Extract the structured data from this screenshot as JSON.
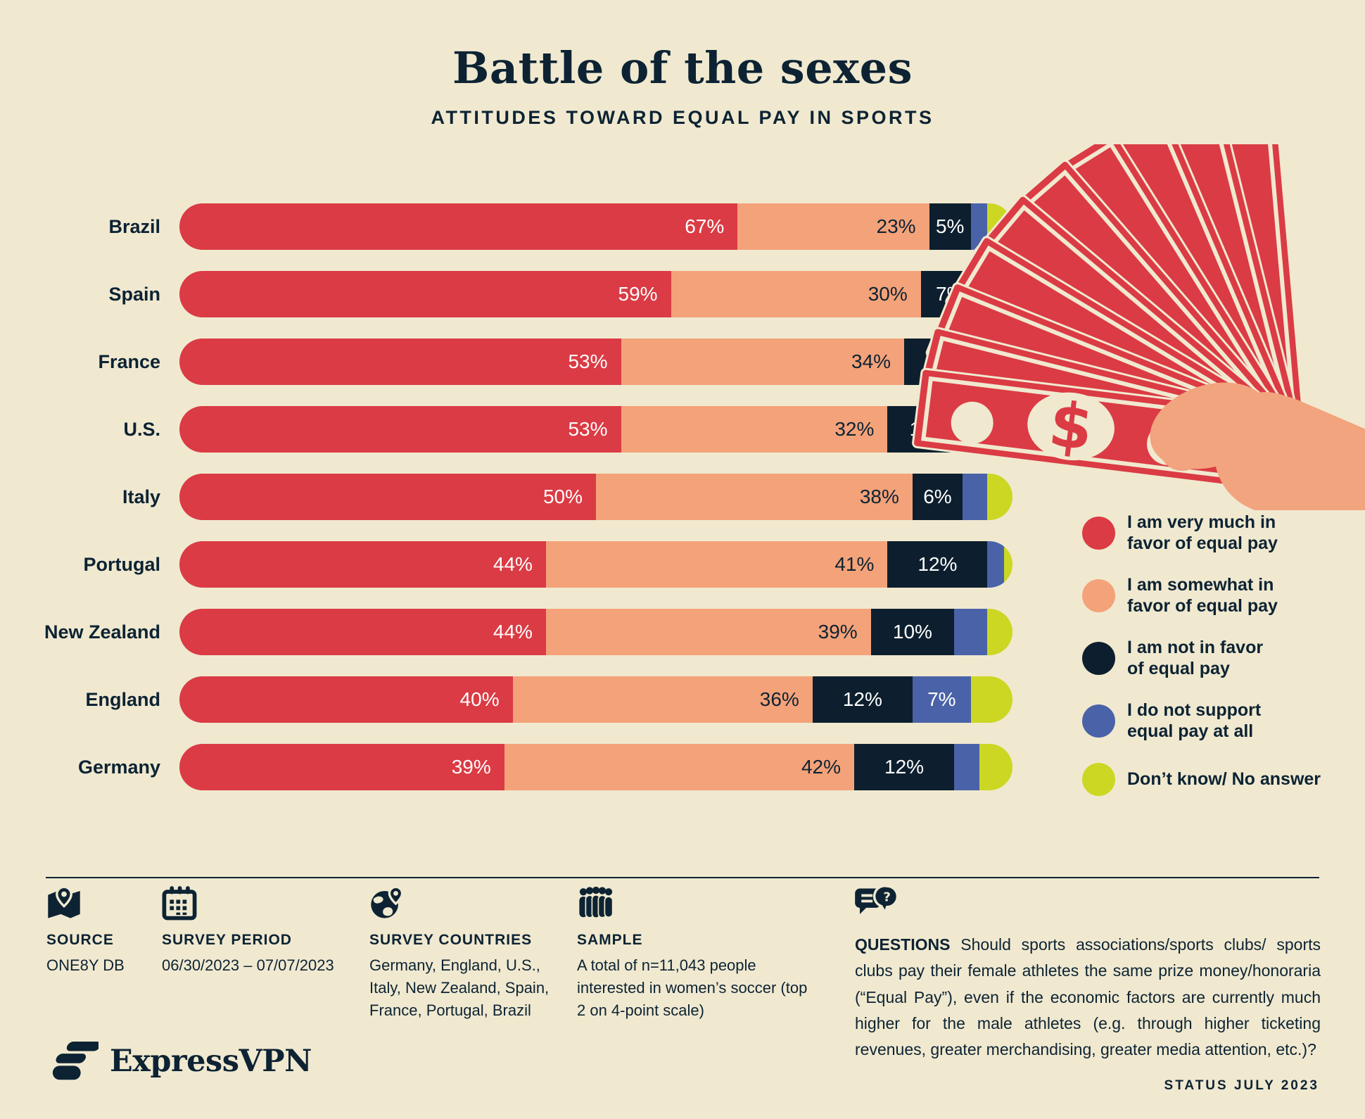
{
  "header": {
    "title": "Battle of the sexes",
    "subtitle": "ATTITUDES TOWARD EQUAL PAY IN SPORTS"
  },
  "colors": {
    "background": "#f0e9d0",
    "text": "#0d2333",
    "very_much_red": "#db3b44",
    "somewhat_salmon": "#f4a279",
    "not_in_favor_navy": "#0d1f2e",
    "not_at_all_blue": "#4a62a8",
    "dont_know_lime": "#ccd723"
  },
  "chart_data": {
    "type": "bar",
    "stacked": true,
    "orientation": "horizontal",
    "unit": "%",
    "x_range": [
      0,
      100
    ],
    "grid": false,
    "legend_position": "right",
    "title": "Battle of the sexes",
    "subtitle": "ATTITUDES TOWARD EQUAL PAY IN SPORTS",
    "categories": [
      "Brazil",
      "Spain",
      "France",
      "U.S.",
      "Italy",
      "Portugal",
      "New Zealand",
      "England",
      "Germany"
    ],
    "series": [
      {
        "name": "I am very much in\nfavor of equal pay",
        "color": "#db3b44",
        "values": [
          67,
          59,
          53,
          53,
          50,
          44,
          44,
          40,
          39
        ]
      },
      {
        "name": "I am somewhat in\nfavor of equal pay",
        "color": "#f4a279",
        "values": [
          23,
          30,
          34,
          32,
          38,
          41,
          39,
          36,
          42
        ]
      },
      {
        "name": "I am not in favor\nof equal pay",
        "color": "#0d1f2e",
        "values": [
          5,
          7,
          10,
          10,
          6,
          12,
          10,
          12,
          12
        ]
      },
      {
        "name": "I do not support\nequal pay at all",
        "color": "#4a62a8",
        "values": [
          2,
          2,
          1,
          2,
          3,
          2,
          4,
          7,
          3
        ]
      },
      {
        "name": "Don’t know/ No answer",
        "color": "#ccd723",
        "values": [
          3,
          2,
          2,
          3,
          3,
          1,
          3,
          5,
          4
        ]
      }
    ],
    "labeled_values_note": "percent labels shown inside red, salmon and navy segments for all rows; blue segment labeled only for England (7%)"
  },
  "footer": {
    "source": {
      "label": "SOURCE",
      "value": "ONE8Y DB"
    },
    "survey_period": {
      "label": "SURVEY PERIOD",
      "value": "06/30/2023 – 07/07/2023"
    },
    "survey_countries": {
      "label": "SURVEY COUNTRIES",
      "value": "Germany, England, U.S., Italy, New Zealand, Spain, France, Portugal, Brazil"
    },
    "sample": {
      "label": "SAMPLE",
      "value": "A total of n=11,043 people interested in women’s soccer (top 2 on 4-point scale)"
    },
    "questions": {
      "label": "QUESTIONS",
      "value": "Should sports associations/sports clubs/ sports clubs pay their female athletes the same prize money/honoraria (“Equal Pay”), even if the economic factors are currently much higher for the male athletes (e.g. through higher ticketing revenues, greater merchandising, greater media attention, etc.)?"
    },
    "status": "STATUS JULY 2023",
    "brand": "ExpressVPN"
  }
}
